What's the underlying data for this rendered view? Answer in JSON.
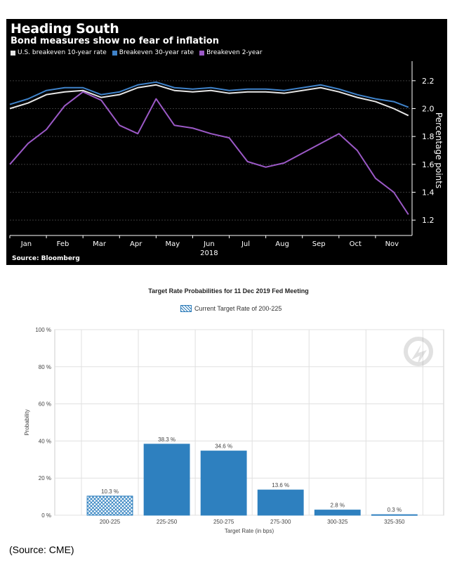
{
  "chart_data": [
    {
      "type": "line",
      "title": "Heading South",
      "subtitle": "Bond measures show no fear of inflation",
      "ylabel": "Percentage points",
      "xlabel": "2018",
      "source": "Source: Bloomberg",
      "ylim": [
        1.1,
        2.3
      ],
      "yticks": [
        "2.2",
        "2.0",
        "1.8",
        "1.6",
        "1.4",
        "1.2"
      ],
      "categories": [
        "Jan",
        "Feb",
        "Mar",
        "Apr",
        "May",
        "Jun",
        "Jul",
        "Aug",
        "Sep",
        "Oct",
        "Nov"
      ],
      "x": [
        0,
        0.5,
        1,
        1.5,
        2,
        2.5,
        3,
        3.5,
        4,
        4.5,
        5,
        5.5,
        6,
        6.5,
        7,
        7.5,
        8,
        8.5,
        9,
        9.5,
        10,
        10.5,
        10.9
      ],
      "series": [
        {
          "name": "U.S. breakeven 10-year rate",
          "color": "#e6e6e6",
          "values": [
            2.0,
            2.04,
            2.1,
            2.12,
            2.13,
            2.08,
            2.1,
            2.15,
            2.17,
            2.13,
            2.12,
            2.13,
            2.11,
            2.12,
            2.12,
            2.11,
            2.13,
            2.15,
            2.12,
            2.08,
            2.05,
            2.0,
            1.95
          ]
        },
        {
          "name": "Breakeven 30-year rate",
          "color": "#3f82c9",
          "values": [
            2.03,
            2.07,
            2.13,
            2.15,
            2.15,
            2.1,
            2.12,
            2.17,
            2.19,
            2.15,
            2.14,
            2.15,
            2.13,
            2.14,
            2.14,
            2.13,
            2.15,
            2.17,
            2.14,
            2.1,
            2.07,
            2.05,
            2.01
          ]
        },
        {
          "name": "Breakeven 2-year",
          "color": "#9b59c6",
          "values": [
            1.6,
            1.75,
            1.85,
            2.02,
            2.12,
            2.06,
            1.88,
            1.82,
            2.07,
            1.88,
            1.86,
            1.82,
            1.79,
            1.62,
            1.58,
            1.61,
            1.68,
            1.75,
            1.82,
            1.7,
            1.5,
            1.4,
            1.24
          ]
        }
      ]
    },
    {
      "type": "bar",
      "title": "Target Rate Probabilities for 11 Dec 2019 Fed Meeting",
      "legend": "Current Target Rate of 200-225",
      "ylabel": "Probability",
      "xlabel": "Target Rate (in bps)",
      "ylim": [
        0,
        100
      ],
      "yticks": [
        "0 %",
        "20 %",
        "40 %",
        "60 %",
        "80 %",
        "100 %"
      ],
      "categories": [
        "200-225",
        "225-250",
        "250-275",
        "275-300",
        "300-325",
        "325-350"
      ],
      "values": [
        10.3,
        38.3,
        34.6,
        13.6,
        2.8,
        0.3
      ],
      "value_labels": [
        "10.3 %",
        "38.3 %",
        "34.6 %",
        "13.6 %",
        "2.8 %",
        "0.3 %"
      ],
      "highlight_index": 0,
      "bar_color": "#2e80bf"
    }
  ],
  "caption": "(Source: CME)"
}
